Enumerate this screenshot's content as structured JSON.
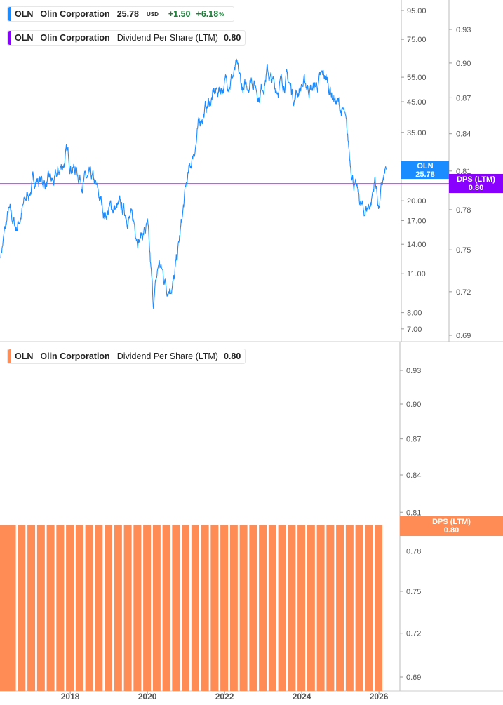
{
  "legends": {
    "price": {
      "ticker": "OLN",
      "name": "Olin Corporation",
      "price": "25.78",
      "currency": "USD",
      "change": "+1.50",
      "change_pct": "+6.18",
      "pct_sign": "%",
      "color": "#1a8cff"
    },
    "dps_top": {
      "ticker": "OLN",
      "name": "Olin Corporation",
      "metric": "Dividend Per Share (LTM)",
      "value": "0.80",
      "color": "#8a00ff"
    },
    "dps_bottom": {
      "ticker": "OLN",
      "name": "Olin Corporation",
      "metric": "Dividend Per Share (LTM)",
      "value": "0.80",
      "color": "#ff8c55"
    }
  },
  "tags": {
    "price": {
      "label": "OLN",
      "value": "25.78"
    },
    "dps_top": {
      "label": "DPS (LTM)",
      "value": "0.80"
    },
    "dps_bottom": {
      "label": "DPS (LTM)",
      "value": "0.80"
    }
  },
  "chart_data": [
    {
      "type": "line",
      "series": [
        {
          "name": "OLN",
          "color": "#1a8cff",
          "x": [
            2016.2,
            2016.4,
            2016.6,
            2016.9,
            2017.1,
            2017.4,
            2017.6,
            2017.9,
            2018.3,
            2018.6,
            2018.9,
            2019.1,
            2019.5,
            2019.8,
            2020.0,
            2020.15,
            2020.3,
            2020.5,
            2020.7,
            2020.9,
            2021.0,
            2021.2,
            2021.4,
            2021.7,
            2022.0,
            2022.3,
            2022.5,
            2022.7,
            2022.9,
            2023.1,
            2023.3,
            2023.6,
            2023.8,
            2024.0,
            2024.3,
            2024.6,
            2024.9,
            2025.1,
            2025.25,
            2025.4,
            2025.6,
            2025.8,
            2025.9,
            2026.0,
            2026.1,
            2026.2
          ],
          "y": [
            13,
            18,
            16,
            21,
            24,
            23,
            23,
            29,
            24,
            23,
            18,
            19,
            18,
            15,
            16,
            8.5,
            12,
            10,
            10.5,
            17,
            22,
            30,
            40,
            47,
            52,
            58,
            48,
            56,
            48,
            58,
            50,
            55,
            47,
            52,
            50,
            55,
            45,
            40,
            28,
            22,
            18,
            20,
            24,
            19,
            23,
            25.78
          ]
        }
      ],
      "yscale": "log",
      "yticks": [
        7,
        8,
        11,
        14,
        17,
        20,
        35,
        45,
        55,
        75,
        95
      ],
      "ylim": [
        7,
        95
      ],
      "xticks": [
        2018,
        2020,
        2022,
        2024,
        2026
      ],
      "xlim": [
        2016.18,
        2026.45
      ]
    },
    {
      "type": "line",
      "series": [
        {
          "name": "DPS (LTM)",
          "color": "#8a00ff",
          "value": 0.8
        }
      ],
      "yscale": "log",
      "yticks": [
        0.69,
        0.72,
        0.75,
        0.78,
        0.81,
        0.84,
        0.87,
        0.9,
        0.93
      ],
      "ylim": [
        0.69,
        0.93
      ]
    },
    {
      "type": "bar",
      "series": [
        {
          "name": "DPS (LTM)",
          "color": "#ff8c55",
          "value": 0.8,
          "frequency": "quarterly",
          "x_start": 2016.25,
          "count": 40
        }
      ],
      "yticks": [
        0.69,
        0.72,
        0.75,
        0.78,
        0.81,
        0.84,
        0.87,
        0.9,
        0.93
      ],
      "ylim": [
        0.69,
        0.93
      ],
      "xticks": [
        2018,
        2020,
        2022,
        2024,
        2026
      ]
    }
  ]
}
